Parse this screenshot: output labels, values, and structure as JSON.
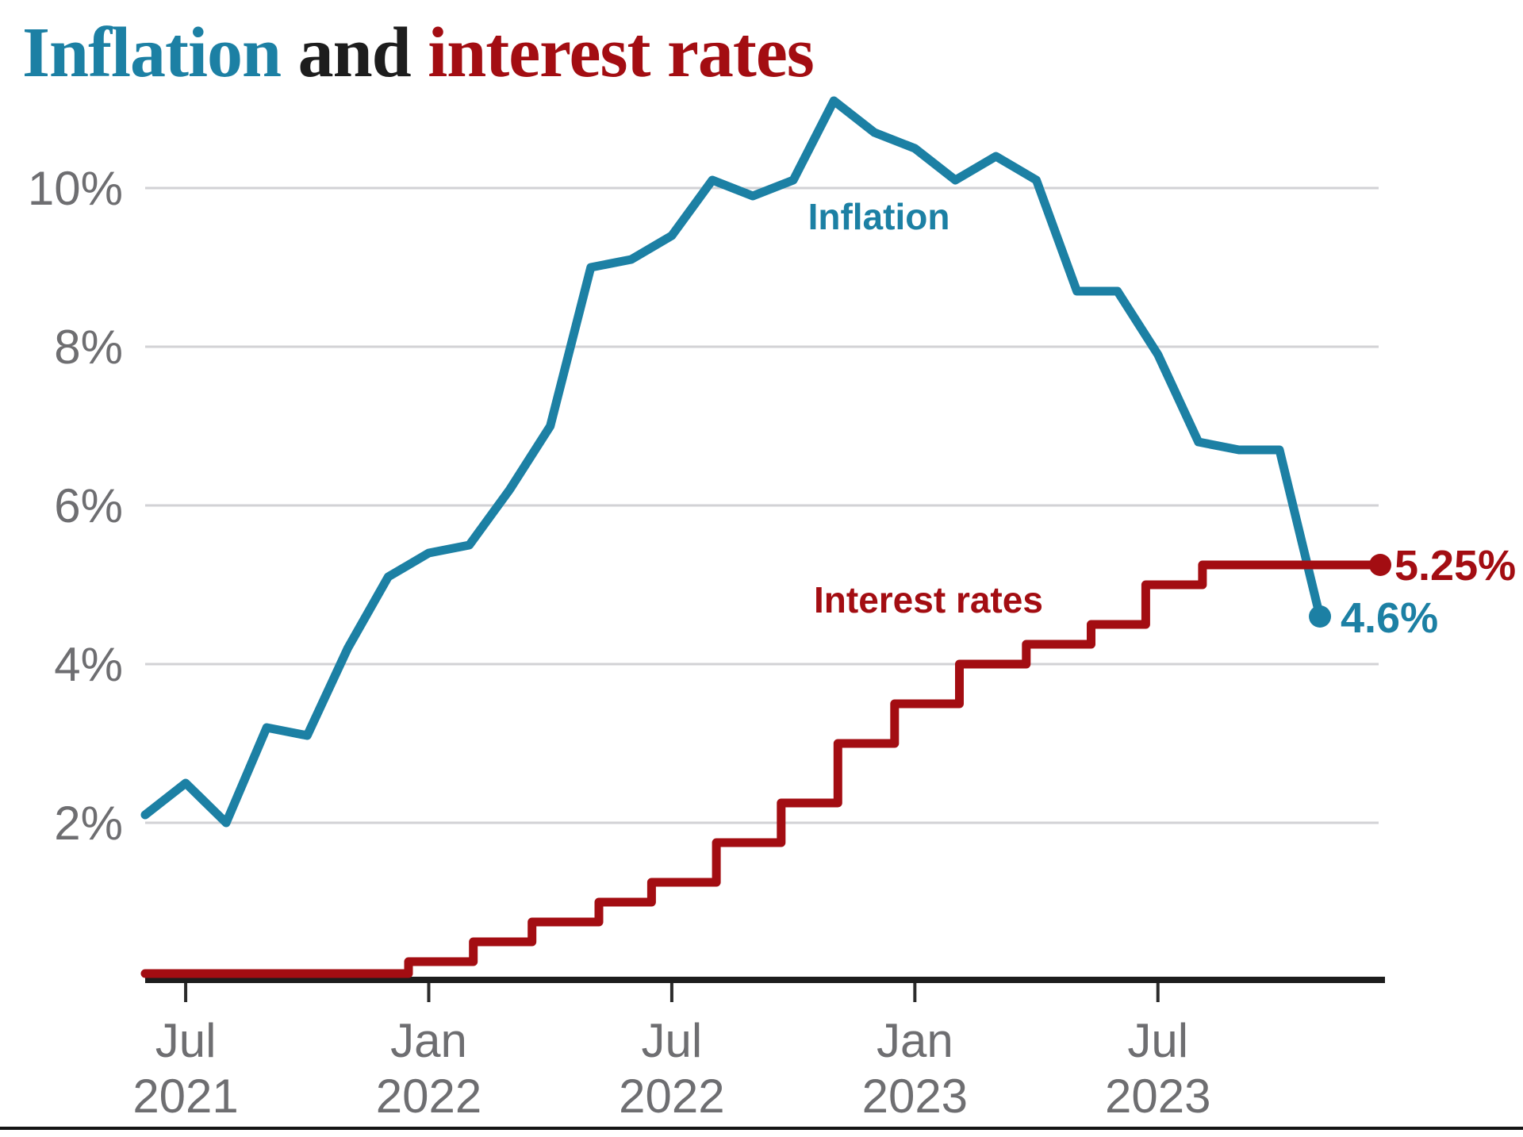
{
  "title": {
    "segments": [
      {
        "text": "Inflation ",
        "color_key": "teal"
      },
      {
        "text": "and ",
        "color_key": "ink"
      },
      {
        "text": "interest rates",
        "color_key": "red"
      }
    ]
  },
  "colors": {
    "teal": "#1C80A4",
    "red": "#A30D12",
    "ink": "#1D1D1D",
    "axis_text": "#6E6E71",
    "grid": "#D2D2D5"
  },
  "chart_data": {
    "type": "line",
    "title": "Inflation and interest rates",
    "y_axis": {
      "unit": "%",
      "grid": true,
      "range": [
        0,
        11.3
      ],
      "ticks": [
        {
          "label": "10%",
          "value": 10
        },
        {
          "label": "8%",
          "value": 8
        },
        {
          "label": "6%",
          "value": 6
        },
        {
          "label": "4%",
          "value": 4
        },
        {
          "label": "2%",
          "value": 2
        }
      ]
    },
    "x_axis": {
      "ticks": [
        {
          "line1": "Jul",
          "line2": "2021",
          "month_index": 1
        },
        {
          "line1": "Jan",
          "line2": "2022",
          "month_index": 7
        },
        {
          "line1": "Jul",
          "line2": "2022",
          "month_index": 13
        },
        {
          "line1": "Jan",
          "line2": "2023",
          "month_index": 19
        },
        {
          "line1": "Jul",
          "line2": "2023",
          "month_index": 25
        }
      ]
    },
    "series": [
      {
        "name": "Inflation",
        "label": "Inflation",
        "type": "line",
        "color": "#1C80A4",
        "end_label": "4.6%",
        "months": [
          "May 2021",
          "Jun 2021",
          "Jul 2021",
          "Aug 2021",
          "Sep 2021",
          "Oct 2021",
          "Nov 2021",
          "Dec 2021",
          "Jan 2022",
          "Feb 2022",
          "Mar 2022",
          "Apr 2022",
          "May 2022",
          "Jun 2022",
          "Jul 2022",
          "Aug 2022",
          "Sep 2022",
          "Oct 2022",
          "Nov 2022",
          "Dec 2022",
          "Jan 2023",
          "Feb 2023",
          "Mar 2023",
          "Apr 2023",
          "May 2023",
          "Jun 2023",
          "Jul 2023",
          "Aug 2023",
          "Sep 2023",
          "Oct 2023"
        ],
        "values": [
          2.1,
          2.5,
          2.0,
          3.2,
          3.1,
          4.2,
          5.1,
          5.4,
          5.5,
          6.2,
          7.0,
          9.0,
          9.1,
          9.4,
          10.1,
          9.9,
          10.1,
          11.1,
          10.7,
          10.5,
          10.1,
          10.4,
          10.1,
          8.7,
          8.7,
          7.9,
          6.8,
          6.7,
          6.7,
          4.6
        ]
      },
      {
        "name": "Interest rates",
        "label": "Interest rates",
        "type": "step",
        "color": "#A30D12",
        "end_label": "5.25%",
        "start_value": 0.1,
        "changes": [
          {
            "month": "Dec 2021",
            "value": 0.25,
            "pos": 6.5
          },
          {
            "month": "Feb 2022",
            "value": 0.5,
            "pos": 8.1
          },
          {
            "month": "Mar 2022",
            "value": 0.75,
            "pos": 9.55
          },
          {
            "month": "May 2022",
            "value": 1.0,
            "pos": 11.2
          },
          {
            "month": "Jun 2022",
            "value": 1.25,
            "pos": 12.5
          },
          {
            "month": "Aug 2022",
            "value": 1.75,
            "pos": 14.1
          },
          {
            "month": "Sep 2022",
            "value": 2.25,
            "pos": 15.7
          },
          {
            "month": "Nov 2022",
            "value": 3.0,
            "pos": 17.1
          },
          {
            "month": "Dec 2022",
            "value": 3.5,
            "pos": 18.5
          },
          {
            "month": "Feb 2023",
            "value": 4.0,
            "pos": 20.1
          },
          {
            "month": "Mar 2023",
            "value": 4.25,
            "pos": 21.75
          },
          {
            "month": "May 2023",
            "value": 4.5,
            "pos": 23.35
          },
          {
            "month": "Jun 2023",
            "value": 5.0,
            "pos": 24.7
          },
          {
            "month": "Aug 2023",
            "value": 5.25,
            "pos": 26.1
          }
        ]
      }
    ]
  }
}
